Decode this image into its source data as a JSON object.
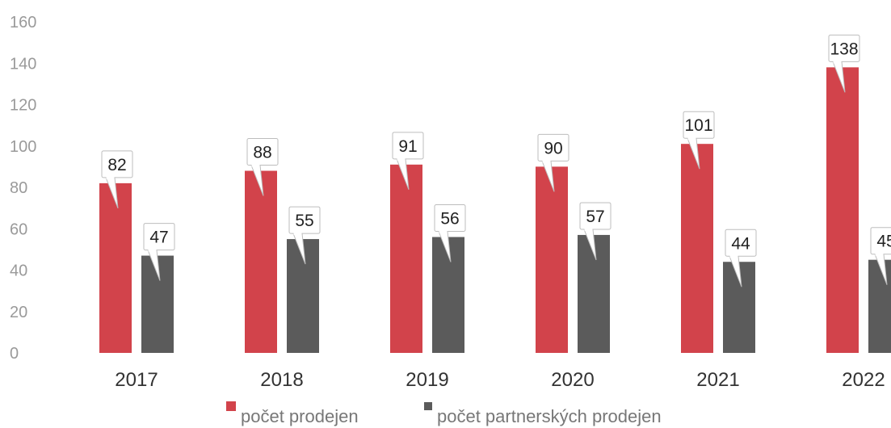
{
  "chart_data": {
    "type": "bar",
    "categories": [
      "2017",
      "2018",
      "2019",
      "2020",
      "2021",
      "2022"
    ],
    "series": [
      {
        "name": "počet prodejen",
        "values": [
          82,
          88,
          91,
          90,
          101,
          138
        ],
        "color": "#d2434b"
      },
      {
        "name": "počet partnerských prodejen",
        "values": [
          47,
          55,
          56,
          57,
          44,
          45
        ],
        "color": "#5b5b5b"
      }
    ],
    "yticks": [
      "0",
      "20",
      "40",
      "60",
      "80",
      "100",
      "120",
      "140",
      "160"
    ],
    "ylim": [
      0,
      160
    ],
    "data_labels": true,
    "grid": false,
    "legend_position": "bottom"
  }
}
